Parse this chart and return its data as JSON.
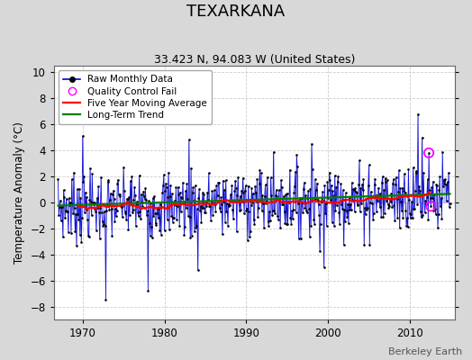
{
  "title": "TEXARKANA",
  "subtitle": "33.423 N, 94.083 W (United States)",
  "ylabel": "Temperature Anomaly (°C)",
  "watermark": "Berkeley Earth",
  "xlim": [
    1966.5,
    2015.5
  ],
  "ylim": [
    -9,
    10.5
  ],
  "yticks": [
    -8,
    -6,
    -4,
    -2,
    0,
    2,
    4,
    6,
    8,
    10
  ],
  "xticks": [
    1970,
    1980,
    1990,
    2000,
    2010
  ],
  "fig_bg_color": "#d8d8d8",
  "plot_bg_color": "#ffffff",
  "grid_color": "#cccccc",
  "stem_color": "#8888ff",
  "line_color": "#0000cc",
  "seed": 7
}
